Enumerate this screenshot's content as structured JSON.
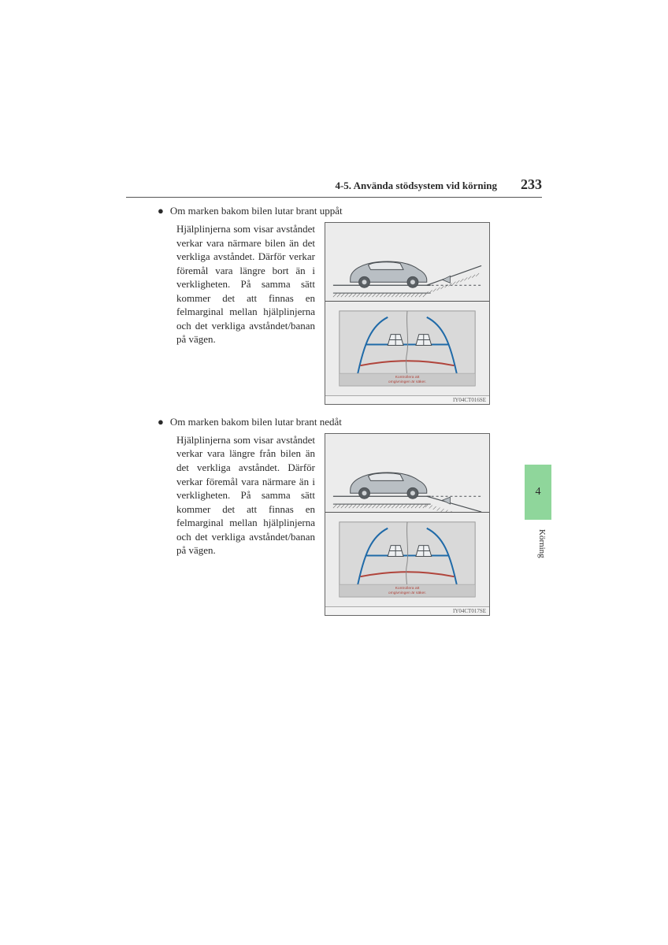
{
  "header": {
    "section": "4-5. Använda stödsystem vid körning",
    "page_number": "233"
  },
  "side_tab": {
    "chapter": "4",
    "label": "Körning",
    "bg_color": "#8fd69b"
  },
  "blocks": [
    {
      "bullet_text": "Om marken bakom bilen lutar brant uppåt",
      "paragraph": "Hjälplinjerna som visar avståndet verkar vara närmare bilen än det verkliga avståndet. Därför verkar föremål vara längre bort än i verkligheten. På samma sätt kommer det att finnas en felmarginal mellan hjälplinjerna och det verkliga avståndet/banan på vägen.",
      "figure_id": "IY04CT016SE",
      "slope": "up"
    },
    {
      "bullet_text": "Om marken bakom bilen lutar brant nedåt",
      "paragraph": "Hjälplinjerna som visar avståndet verkar vara längre från bilen än det verkliga avståndet. Därför verkar föremål vara närmare än i verkligheten. På samma sätt kommer det att finnas en felmarginal mellan hjälplinjerna och det verkliga avståndet/banan på vägen.",
      "figure_id": "IY04CT017SE",
      "slope": "down"
    }
  ],
  "camera_text": {
    "line1": "Kontrollera att",
    "line2": "omgivningen är säker."
  },
  "colors": {
    "guide_blue": "#1f6aa8",
    "guide_red": "#b0443b",
    "car_fill": "#b9bfc4",
    "car_stroke": "#4a4f53",
    "ground_hatch": "#7a7a7a",
    "panel_bg": "#ececec",
    "camera_bg": "#d9d9d9",
    "camera_frame": "#9a9a9a"
  }
}
